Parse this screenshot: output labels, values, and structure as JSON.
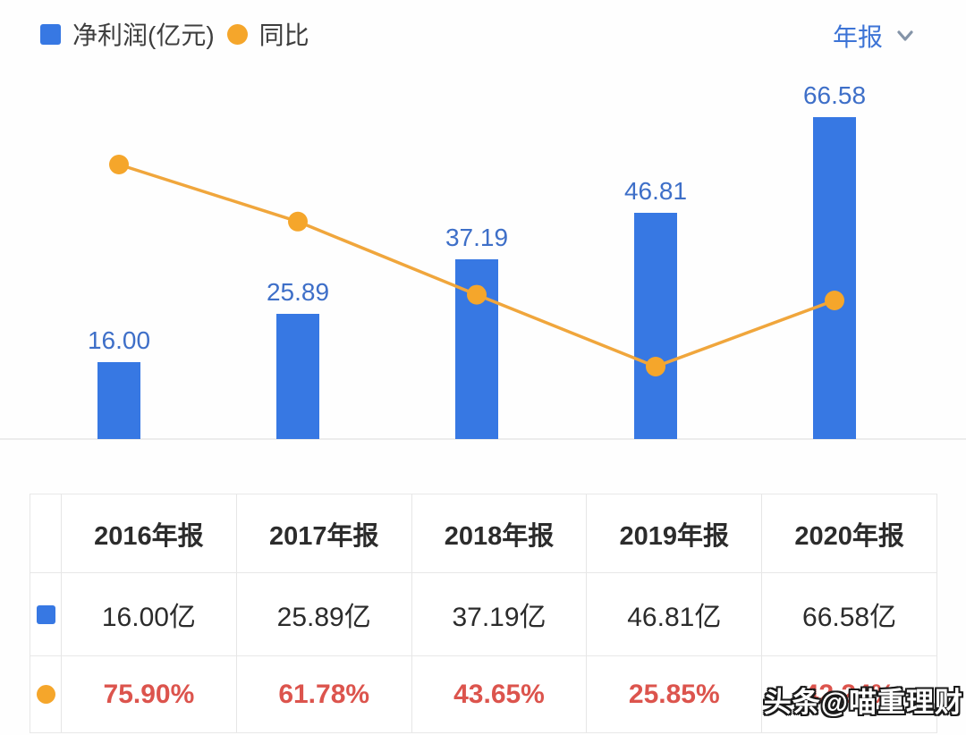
{
  "colors": {
    "bar_blue": "#3778e3",
    "label_blue": "#3e6fc8",
    "line_orange": "#f0a63c",
    "point_orange": "#f5a62b",
    "negative_red": "#dc544d",
    "period_blue": "#3d74d6"
  },
  "legend": {
    "net_profit_label": "净利润(亿元)",
    "yoy_label": "同比"
  },
  "period_selector": {
    "label": "年报"
  },
  "chart_data": {
    "type": "bar",
    "categories": [
      "2016年报",
      "2017年报",
      "2018年报",
      "2019年报",
      "2020年报"
    ],
    "series": [
      {
        "name": "净利润(亿元)",
        "type": "bar",
        "values": [
          16.0,
          25.89,
          37.19,
          46.81,
          66.58
        ],
        "labels": [
          "16.00",
          "25.89",
          "37.19",
          "46.81",
          "66.58"
        ],
        "color": "#3778e3"
      },
      {
        "name": "同比",
        "type": "line",
        "values": [
          75.9,
          61.78,
          43.65,
          25.85,
          42.24
        ],
        "labels": [
          "75.90%",
          "61.78%",
          "43.65%",
          "25.85%",
          "42.24%"
        ],
        "color": "#f5a62b"
      }
    ],
    "ylim_bar": [
      0,
      72
    ],
    "grid": false,
    "axes_visible": false,
    "legend_position": "top-left",
    "bar_value_labels_shown": true,
    "line_value_labels_shown": false
  },
  "table": {
    "headers": [
      "2016年报",
      "2017年报",
      "2018年报",
      "2019年报",
      "2020年报"
    ],
    "net_profit_row": [
      "16.00亿",
      "25.89亿",
      "37.19亿",
      "46.81亿",
      "66.58亿"
    ],
    "yoy_row": [
      "75.90%",
      "61.78%",
      "43.65%",
      "25.85%",
      "42.24%"
    ]
  },
  "watermark": {
    "text": "头条@喵重理财"
  }
}
